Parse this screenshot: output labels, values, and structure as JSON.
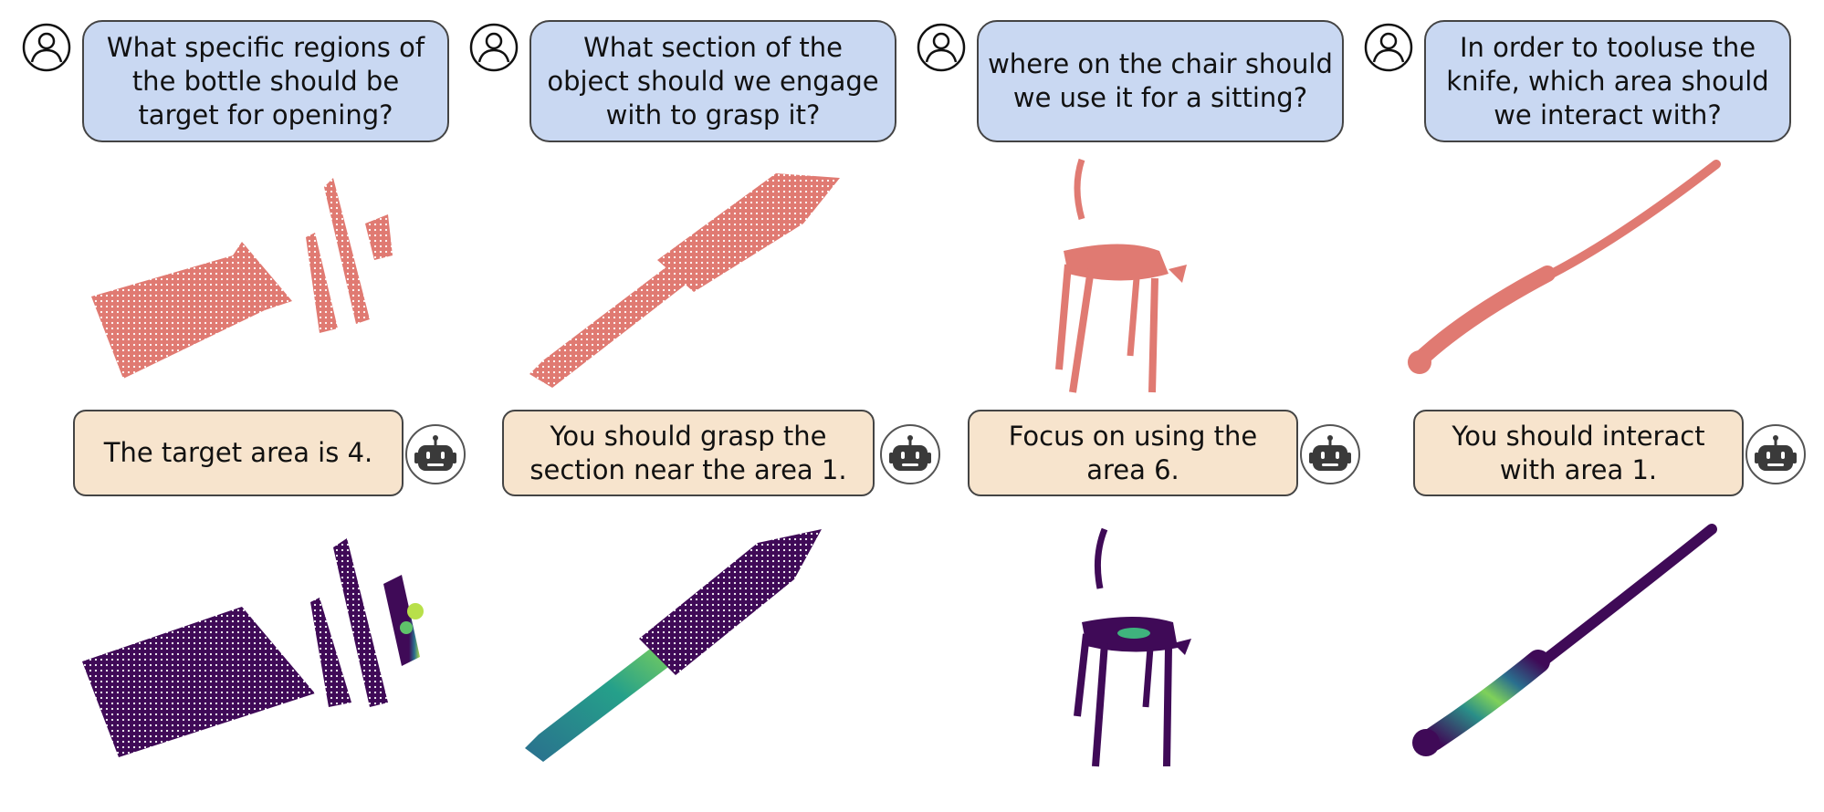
{
  "panels": [
    {
      "question": "What specific regions of the bottle should be target for opening?",
      "answer": "The target area is 4.",
      "object": "bottle"
    },
    {
      "question": "What section of the object should we engage with to grasp it?",
      "answer": "You should grasp the section near the area 1.",
      "object": "knife"
    },
    {
      "question": "where on the chair should we use it for a sitting?",
      "answer": "Focus on using the area 6.",
      "object": "chair"
    },
    {
      "question": "In order to tooluse the knife, which area should we interact with?",
      "answer": "You should interact with area 1.",
      "object": "knife-long"
    }
  ],
  "colors": {
    "question_bg": "#c9d8f2",
    "answer_bg": "#f7e4cd",
    "pointcloud_input": "#e07a72",
    "affordance_low": "#3f0a57",
    "affordance_high": "#b8e04a"
  },
  "icons": {
    "user": "user-icon",
    "robot": "robot-icon"
  }
}
